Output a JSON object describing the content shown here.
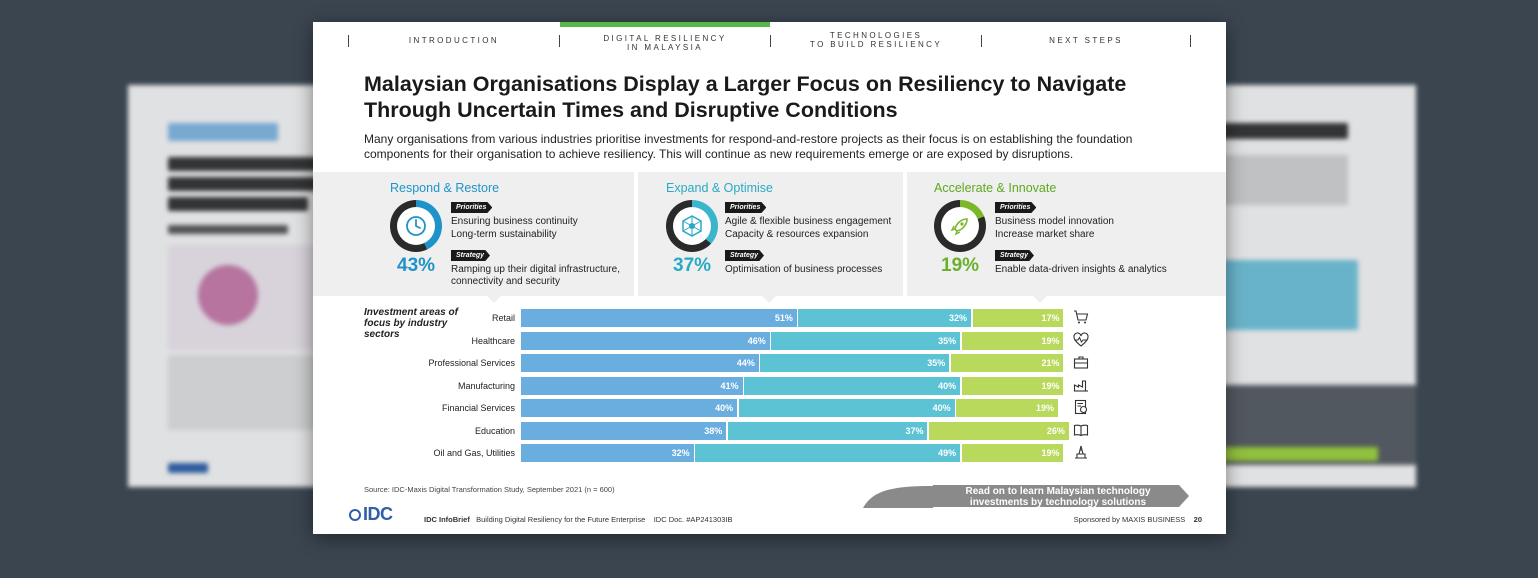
{
  "nav": {
    "items": [
      {
        "label": "Introduction"
      },
      {
        "label": "Digital Resiliency in Malaysia",
        "line1": "Digital Resiliency",
        "line2": "in Malaysia"
      },
      {
        "label": "Technologies to Build Resiliency",
        "line1": "Technologies",
        "line2": "to Build Resiliency"
      },
      {
        "label": "Next Steps"
      }
    ]
  },
  "title": "Malaysian Organisations Display a Larger Focus on Resiliency to Navigate Through Uncertain Times and Disruptive Conditions",
  "subtitle": "Many organisations from various industries prioritise investments for respond-and-restore projects as their focus is on establishing the foundation components for their organisation to achieve resiliency. This will continue as new requirements emerge or are exposed by disruptions.",
  "panels": [
    {
      "title": "Respond & Restore",
      "percent": "43%",
      "percent_value": 43,
      "color": "#1f93c9",
      "priorities_label": "Priorities",
      "priorities": [
        "Ensuring business continuity",
        "Long-term sustainability"
      ],
      "strategy_label": "Strategy",
      "strategy": [
        "Ramping up their digital infrastructure,",
        "connectivity and security"
      ],
      "icon": "clock-icon"
    },
    {
      "title": "Expand & Optimise",
      "percent": "37%",
      "percent_value": 37,
      "color": "#3bb5cc",
      "priorities_label": "Priorities",
      "priorities": [
        "Agile & flexible business engagement",
        "Capacity & resources expansion"
      ],
      "strategy_label": "Strategy",
      "strategy": [
        "Optimisation of business processes"
      ],
      "icon": "network-icon"
    },
    {
      "title": "Accelerate & Innovate",
      "percent": "19%",
      "percent_value": 19,
      "color": "#7ab829",
      "priorities_label": "Priorities",
      "priorities": [
        "Business model innovation",
        "Increase market share"
      ],
      "strategy_label": "Strategy",
      "strategy": [
        "Enable data-driven insights & analytics"
      ],
      "icon": "rocket-icon"
    }
  ],
  "chart_data": {
    "type": "bar",
    "stacked": true,
    "orientation": "horizontal",
    "title": "Investment areas of focus by industry sectors",
    "categories": [
      "Retail",
      "Healthcare",
      "Professional Services",
      "Manufacturing",
      "Financial Services",
      "Education",
      "Oil and Gas, Utilities"
    ],
    "series": [
      {
        "values": [
          51,
          46,
          44,
          41,
          40,
          38,
          32
        ],
        "labels": [
          "51%",
          "46%",
          "44%",
          "41%",
          "40%",
          "38%",
          "32%"
        ],
        "color": "#6aaee0"
      },
      {
        "values": [
          32,
          35,
          35,
          40,
          40,
          37,
          49
        ],
        "labels": [
          "32%",
          "35%",
          "35%",
          "40%",
          "40%",
          "37%",
          "49%"
        ],
        "color": "#5cc3d5"
      },
      {
        "values": [
          17,
          19,
          21,
          19,
          19,
          26,
          19
        ],
        "labels": [
          "17%",
          "19%",
          "21%",
          "19%",
          "19%",
          "26%",
          "19%"
        ],
        "color": "#b8d95b"
      }
    ],
    "xlim": [
      0,
      100
    ],
    "row_icons": [
      "cart-icon",
      "heart-pulse-icon",
      "briefcase-icon",
      "factory-icon",
      "finance-doc-icon",
      "book-icon",
      "oil-rig-icon"
    ]
  },
  "source": "Source: IDC-Maxis Digital Transformation Study, September 2021 (n = 600)",
  "cta": {
    "line1": "Read on to learn Malaysian technology",
    "line2": "investments by technology solutions"
  },
  "footer": {
    "logo": "IDC",
    "brand": "IDC InfoBrief",
    "doc_title": "Building Digital Resiliency for the Future Enterprise",
    "doc_id": "IDC Doc. #AP241303IB",
    "sponsor": "Sponsored by MAXIS BUSINESS",
    "page": "20"
  }
}
